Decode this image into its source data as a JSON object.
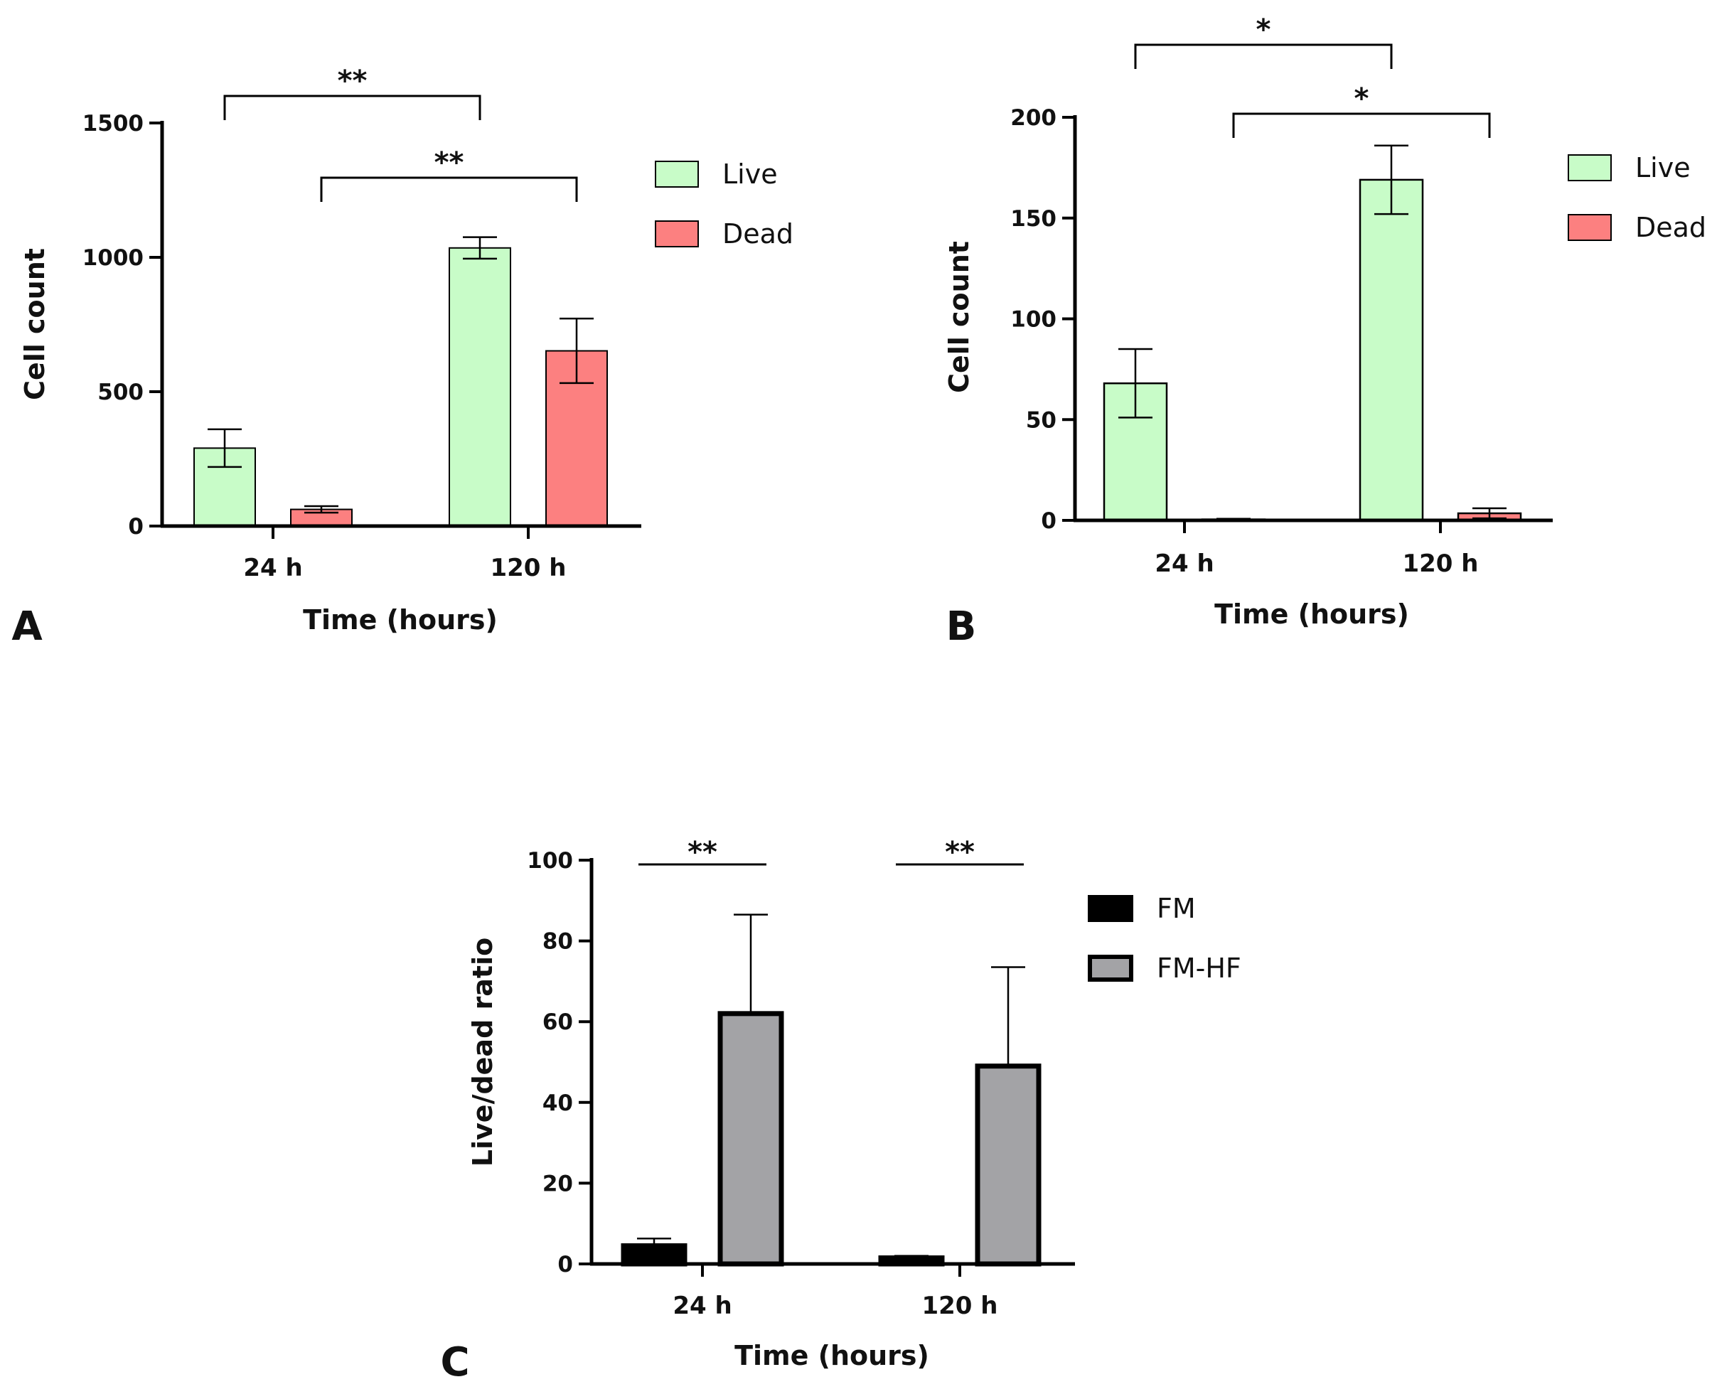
{
  "chart_data": [
    {
      "panel": "A",
      "type": "bar",
      "categories": [
        "24 h",
        "120 h"
      ],
      "xlabel": "Time (hours)",
      "ylabel": "Cell count",
      "ylim": [
        0,
        1500
      ],
      "yticks": [
        0,
        500,
        1000,
        1500
      ],
      "series": [
        {
          "name": "Live",
          "color": "#c8fcc8",
          "values": [
            290,
            1035
          ],
          "errors": [
            70,
            40
          ]
        },
        {
          "name": "Dead",
          "color": "#fc8080",
          "values": [
            62,
            652
          ],
          "errors": [
            12,
            120
          ]
        }
      ],
      "significance": [
        {
          "label": "**",
          "from": [
            0,
            0
          ],
          "to": [
            1,
            0
          ]
        },
        {
          "label": "**",
          "from": [
            0,
            1
          ],
          "to": [
            1,
            1
          ]
        }
      ]
    },
    {
      "panel": "B",
      "type": "bar",
      "categories": [
        "24 h",
        "120 h"
      ],
      "xlabel": "Time (hours)",
      "ylabel": "Cell count",
      "ylim": [
        0,
        200
      ],
      "yticks": [
        0,
        50,
        100,
        150,
        200
      ],
      "series": [
        {
          "name": "Live",
          "color": "#c8fcc8",
          "values": [
            68,
            169
          ],
          "errors": [
            17,
            17
          ]
        },
        {
          "name": "Dead",
          "color": "#fc8080",
          "values": [
            0.5,
            3.5
          ],
          "errors": [
            0.3,
            2.5
          ]
        }
      ],
      "significance": [
        {
          "label": "*",
          "from": [
            0,
            0
          ],
          "to": [
            1,
            0
          ]
        },
        {
          "label": "*",
          "from": [
            0,
            1
          ],
          "to": [
            1,
            1
          ]
        }
      ]
    },
    {
      "panel": "C",
      "type": "bar",
      "categories": [
        "24 h",
        "120 h"
      ],
      "xlabel": "Time (hours)",
      "ylabel": "Live/dead ratio",
      "ylim": [
        0,
        100
      ],
      "yticks": [
        0,
        20,
        40,
        60,
        80,
        100
      ],
      "series": [
        {
          "name": "FM",
          "color": "#000000",
          "values": [
            4.5,
            1.5
          ],
          "errors": [
            1.8,
            0.5
          ]
        },
        {
          "name": "FM-HF",
          "color": "#a3a3a6",
          "values": [
            62,
            49
          ],
          "errors": [
            24.5,
            24.5
          ]
        }
      ],
      "significance": [
        {
          "label": "**",
          "from": [
            0,
            0
          ],
          "to": [
            0,
            1
          ]
        },
        {
          "label": "**",
          "from": [
            1,
            0
          ],
          "to": [
            1,
            1
          ]
        }
      ]
    }
  ]
}
